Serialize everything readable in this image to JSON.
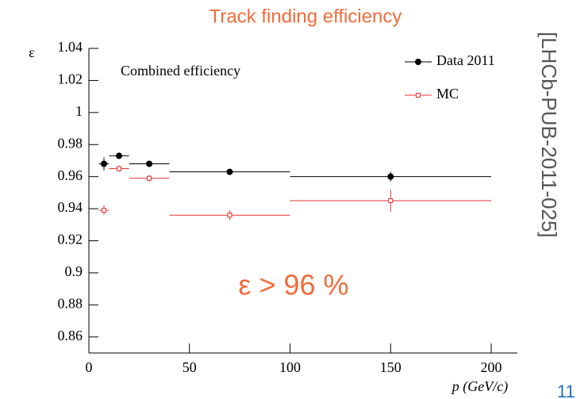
{
  "chart_data": {
    "type": "errorbar",
    "title": "Track finding efficiency",
    "annotation": "Combined efficiency",
    "highlight": "ε > 96 %",
    "source": "[LHCb-PUB-2011-025]",
    "page_number": "11",
    "x_label": "p (GeV/c)",
    "y_label": "ε",
    "xlim": [
      0,
      213
    ],
    "xticks": [
      0,
      50,
      100,
      150,
      200
    ],
    "ylim": [
      0.85,
      1.04
    ],
    "yticks": [
      0.86,
      0.88,
      0.9,
      0.92,
      0.94,
      0.96,
      0.98,
      1,
      1.02,
      1.04
    ],
    "legend": "upper right",
    "series": [
      {
        "name": "Data 2011",
        "color": "#000000",
        "marker": "filled-circle",
        "x": [
          7.5,
          15,
          30,
          70,
          150
        ],
        "xerr": [
          2.5,
          5,
          10,
          30,
          50
        ],
        "values": [
          0.968,
          0.973,
          0.968,
          0.963,
          0.96
        ],
        "yerr": [
          0.004,
          0.002,
          0.002,
          0.001,
          0.003
        ]
      },
      {
        "name": "MC",
        "color": "#e03030",
        "marker": "open-square",
        "x": [
          7.5,
          15,
          30,
          70,
          150
        ],
        "xerr": [
          2.5,
          5,
          10,
          30,
          50
        ],
        "values": [
          0.939,
          0.965,
          0.959,
          0.936,
          0.945
        ],
        "yerr": [
          0.003,
          0.002,
          0.002,
          0.003,
          0.007
        ]
      }
    ]
  }
}
